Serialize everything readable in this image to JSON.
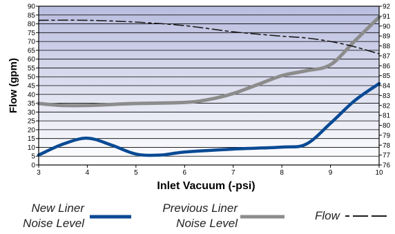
{
  "chart_data": {
    "type": "line",
    "xlabel": "Inlet Vacuum (-psi)",
    "ylabel": "Flow (gpm)",
    "xlim": [
      3,
      10
    ],
    "ylim_left": [
      0,
      90
    ],
    "ylim_right": [
      76,
      92
    ],
    "x_ticks": [
      "3",
      "4",
      "5",
      "6",
      "7",
      "8",
      "9",
      "10"
    ],
    "y_ticks_left": [
      "0",
      "5",
      "10",
      "15",
      "20",
      "25",
      "30",
      "35",
      "40",
      "45",
      "50",
      "55",
      "60",
      "65",
      "70",
      "75",
      "80",
      "85",
      "90"
    ],
    "y_ticks_right": [
      "76",
      "77",
      "78",
      "79",
      "80",
      "81",
      "82",
      "83",
      "84",
      "85",
      "86",
      "87",
      "88",
      "89",
      "90",
      "91",
      "92"
    ],
    "grid": true,
    "colors": {
      "new_liner": "#0a4a94",
      "previous_liner": "#8c8c8c",
      "flow": "#1a1a1a",
      "plot_top": "#b9bddf",
      "plot_bottom": "#ffffff"
    },
    "series": [
      {
        "name": "New Liner Noise Level",
        "axis": "right",
        "x": [
          3.0,
          3.5,
          4.0,
          4.5,
          5.0,
          5.5,
          6.0,
          7.0,
          8.0,
          8.5,
          9.0,
          9.5,
          10.0
        ],
        "y": [
          77.0,
          78.1,
          78.7,
          78.0,
          77.1,
          77.0,
          77.3,
          77.6,
          77.8,
          78.1,
          80.2,
          82.5,
          84.2
        ]
      },
      {
        "name": "Previous Liner Noise Level",
        "axis": "right",
        "x": [
          3.0,
          3.5,
          4.0,
          5.0,
          6.0,
          6.5,
          7.0,
          7.5,
          8.0,
          8.5,
          9.0,
          9.5,
          10.0
        ],
        "y": [
          82.2,
          82.0,
          82.0,
          82.2,
          82.3,
          82.6,
          83.2,
          84.1,
          85.0,
          85.5,
          86.1,
          88.5,
          90.9
        ]
      },
      {
        "name": "Flow",
        "axis": "left",
        "x": [
          3.0,
          4.0,
          5.0,
          6.0,
          7.0,
          8.0,
          8.5,
          9.0,
          9.5,
          10.0
        ],
        "y": [
          82,
          82,
          81,
          79,
          75.5,
          73,
          72,
          70,
          67,
          63
        ]
      }
    ]
  },
  "legend": {
    "new_liner_line1": "New Liner",
    "new_liner_line2": "Noise Level",
    "previous_liner_line1": "Previous Liner",
    "previous_liner_line2": "Noise Level",
    "flow": "Flow"
  }
}
